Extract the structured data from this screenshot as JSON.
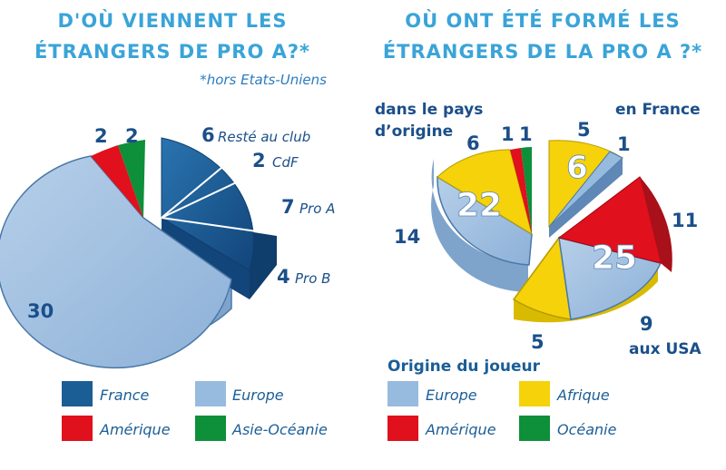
{
  "colors": {
    "title": "#3aa4d8",
    "france": "#1b5e96",
    "europe": "#97bbdf",
    "amerique": "#e0101c",
    "asie_oceanie": "#0e8f3a",
    "afrique": "#f5d20a",
    "number": "#1b4f8a"
  },
  "chart_data": [
    {
      "type": "pie",
      "title": "D'OÙ VIENNENT LES ÉTRANGERS DE PRO A?*",
      "title_line1": "D'OÙ VIENNENT LES",
      "title_line2": "ÉTRANGERS DE PRO A?*",
      "note": "*hors Etats-Uniens",
      "slices": [
        {
          "label": "France",
          "value": 19,
          "exploded": true,
          "sub": [
            {
              "label": "Resté au club",
              "value": 6
            },
            {
              "label": "CdF",
              "value": 2
            },
            {
              "label": "Pro A",
              "value": 7
            },
            {
              "label": "Pro B",
              "value": 4
            }
          ]
        },
        {
          "label": "Europe",
          "value": 30
        },
        {
          "label": "Amérique",
          "value": 2
        },
        {
          "label": "Asie-Océanie",
          "value": 2
        }
      ],
      "legend": [
        "France",
        "Europe",
        "Amérique",
        "Asie-Océanie"
      ]
    },
    {
      "type": "pie",
      "title": "OÙ ONT ÉTÉ FORMÉ LES ÉTRANGERS DE LA PRO A ?*",
      "title_line1": "OÙ ONT ÉTÉ FORMÉ LES",
      "title_line2": "ÉTRANGERS DE LA PRO A ?*",
      "groups": [
        {
          "label": "dans le pays d'origine",
          "total": 22,
          "slices": [
            {
              "origin": "Europe",
              "value": 14
            },
            {
              "origin": "Afrique",
              "value": 6
            },
            {
              "origin": "Amérique",
              "value": 1
            },
            {
              "origin": "Océanie",
              "value": 1
            }
          ]
        },
        {
          "label": "en France",
          "total": 6,
          "slices": [
            {
              "origin": "Afrique",
              "value": 5
            },
            {
              "origin": "Europe",
              "value": 1
            }
          ]
        },
        {
          "label": "aux USA",
          "total": 25,
          "slices": [
            {
              "origin": "Amérique",
              "value": 11
            },
            {
              "origin": "Europe",
              "value": 9
            },
            {
              "origin": "Afrique",
              "value": 5
            }
          ]
        }
      ],
      "legend_title": "Origine du joueur",
      "legend": [
        "Europe",
        "Afrique",
        "Amérique",
        "Océanie"
      ]
    }
  ]
}
